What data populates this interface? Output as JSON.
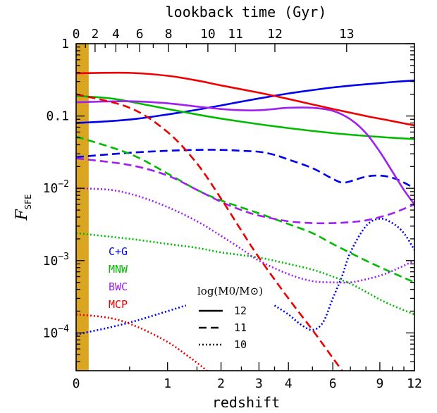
{
  "chart_data": {
    "type": "line",
    "xlabel": "redshift",
    "top_xlabel": "lookback time (Gyr)",
    "ylabel": "F",
    "ylabel_sub": "SFE",
    "x_scale": "log(1+z)",
    "y_scale": "log",
    "xlim": [
      0,
      12
    ],
    "ylim": [
      3e-05,
      1
    ],
    "x_ticks": [
      0,
      1,
      2,
      3,
      4,
      6,
      9,
      12
    ],
    "x_tick_labels": [
      "0",
      "1",
      "2",
      "3",
      "4",
      "6",
      "9",
      "12"
    ],
    "top_ticks": [
      0,
      2,
      4,
      6,
      8,
      10,
      11,
      12,
      13
    ],
    "top_tick_labels": [
      "0",
      "2",
      "4",
      "6",
      "8",
      "10",
      "11",
      "12",
      "13"
    ],
    "y_ticks": [
      1,
      0.1,
      0.01,
      0.001,
      0.0001
    ],
    "y_tick_labels": [
      {
        "base": "1",
        "exp": ""
      },
      {
        "base": "0.1",
        "exp": ""
      },
      {
        "base": "10",
        "exp": "−2"
      },
      {
        "base": "10",
        "exp": "−3"
      },
      {
        "base": "10",
        "exp": "−4"
      }
    ],
    "shaded_band": {
      "x": [
        0,
        0.1
      ],
      "color": "#DAA520"
    },
    "legend_models": [
      {
        "label": "C+G",
        "color": "#0000EE"
      },
      {
        "label": "MNW",
        "color": "#00BB00"
      },
      {
        "label": "BWC",
        "color": "#A020F0"
      },
      {
        "label": "MCP",
        "color": "#EE0000"
      }
    ],
    "legend_mass_title": "log(M0/M⊙)",
    "legend_styles": [
      {
        "label": "12",
        "dash": "solid"
      },
      {
        "label": "11",
        "dash": "dashed"
      },
      {
        "label": "10",
        "dash": "dotted"
      }
    ],
    "series": [
      {
        "model": "C+G",
        "logM": "12",
        "color": "#0000EE",
        "dash": "solid",
        "x": [
          0,
          0.3,
          0.6,
          1,
          1.5,
          2,
          2.5,
          3,
          4,
          5,
          6,
          8,
          10,
          12
        ],
        "y": [
          0.08,
          0.085,
          0.092,
          0.105,
          0.122,
          0.14,
          0.158,
          0.175,
          0.205,
          0.228,
          0.248,
          0.275,
          0.295,
          0.31
        ]
      },
      {
        "model": "C+G",
        "logM": "11",
        "color": "#0000EE",
        "dash": "dashed",
        "x": [
          0,
          0.5,
          1,
          1.5,
          2,
          2.5,
          3,
          3.5,
          4,
          5,
          6,
          6.5,
          7,
          8,
          9,
          10,
          11,
          12
        ],
        "y": [
          0.027,
          0.031,
          0.033,
          0.034,
          0.034,
          0.033,
          0.032,
          0.029,
          0.025,
          0.019,
          0.0135,
          0.012,
          0.0125,
          0.0145,
          0.015,
          0.014,
          0.012,
          0.01
        ]
      },
      {
        "model": "C+G",
        "logM": "10",
        "color": "#0000EE",
        "dash": "dotted",
        "x": [
          0,
          0.3,
          0.6,
          1,
          1.3
        ],
        "y": [
          9.5e-05,
          0.00012,
          0.00015,
          0.0002,
          0.00024
        ]
      },
      {
        "model": "C+G",
        "logM": "10",
        "color": "#0000EE",
        "dash": "dotted",
        "x": [
          3.5,
          4,
          4.5,
          5,
          5.5,
          6,
          6.5,
          7,
          8,
          9,
          10,
          11,
          12
        ],
        "y": [
          0.00024,
          0.00018,
          0.00013,
          0.00011,
          0.00014,
          0.0003,
          0.0006,
          0.0013,
          0.003,
          0.0038,
          0.0033,
          0.0024,
          0.0014
        ]
      },
      {
        "model": "MNW",
        "logM": "12",
        "color": "#00BB00",
        "dash": "solid",
        "x": [
          0,
          0.3,
          0.6,
          1,
          1.5,
          2,
          3,
          4,
          6,
          8,
          10,
          12
        ],
        "y": [
          0.19,
          0.175,
          0.15,
          0.125,
          0.105,
          0.092,
          0.077,
          0.068,
          0.058,
          0.053,
          0.05,
          0.048
        ]
      },
      {
        "model": "MNW",
        "logM": "11",
        "color": "#00BB00",
        "dash": "dashed",
        "x": [
          0,
          0.5,
          1,
          1.5,
          2,
          3,
          4,
          5,
          6,
          8,
          10,
          12
        ],
        "y": [
          0.052,
          0.03,
          0.016,
          0.0095,
          0.0068,
          0.0045,
          0.0032,
          0.0024,
          0.0017,
          0.001,
          0.00068,
          0.0005
        ]
      },
      {
        "model": "MNW",
        "logM": "10",
        "color": "#00BB00",
        "dash": "dotted",
        "x": [
          0,
          0.5,
          1,
          1.5,
          2,
          3,
          4,
          5,
          6,
          7,
          8,
          9,
          10,
          12
        ],
        "y": [
          0.0024,
          0.002,
          0.0017,
          0.0015,
          0.0013,
          0.0011,
          0.0009,
          0.00075,
          0.0006,
          0.00048,
          0.00037,
          0.00029,
          0.00024,
          0.00018
        ]
      },
      {
        "model": "BWC",
        "logM": "12",
        "color": "#A020F0",
        "dash": "solid",
        "x": [
          0,
          0.5,
          1,
          1.5,
          2,
          2.5,
          3,
          3.5,
          4,
          5,
          6,
          7,
          8,
          9,
          10,
          11,
          12
        ],
        "y": [
          0.155,
          0.16,
          0.15,
          0.135,
          0.125,
          0.12,
          0.12,
          0.125,
          0.13,
          0.13,
          0.118,
          0.09,
          0.058,
          0.032,
          0.017,
          0.0095,
          0.006
        ]
      },
      {
        "model": "BWC",
        "logM": "11",
        "color": "#A020F0",
        "dash": "dashed",
        "x": [
          0,
          0.5,
          1,
          1.5,
          2,
          2.5,
          3,
          4,
          5,
          6,
          7,
          8,
          9,
          10,
          11,
          12
        ],
        "y": [
          0.026,
          0.021,
          0.015,
          0.0095,
          0.0065,
          0.005,
          0.0042,
          0.0035,
          0.0033,
          0.0033,
          0.0034,
          0.0036,
          0.004,
          0.0045,
          0.0052,
          0.006
        ]
      },
      {
        "model": "BWC",
        "logM": "10",
        "color": "#A020F0",
        "dash": "dotted",
        "x": [
          0,
          0.3,
          0.6,
          1,
          1.5,
          2,
          2.5,
          3,
          4,
          5,
          6,
          7,
          8,
          9,
          10,
          12
        ],
        "y": [
          0.01,
          0.0095,
          0.0078,
          0.0055,
          0.0035,
          0.0022,
          0.00145,
          0.001,
          0.00065,
          0.00052,
          0.0005,
          0.0005,
          0.00055,
          0.00062,
          0.00072,
          0.001
        ]
      },
      {
        "model": "MCP",
        "logM": "12",
        "color": "#EE0000",
        "dash": "solid",
        "x": [
          0,
          0.5,
          1,
          1.5,
          2,
          3,
          4,
          6,
          8,
          10,
          12
        ],
        "y": [
          0.39,
          0.395,
          0.36,
          0.31,
          0.265,
          0.21,
          0.172,
          0.125,
          0.1,
          0.085,
          0.074
        ]
      },
      {
        "model": "MCP",
        "logM": "11",
        "color": "#EE0000",
        "dash": "dashed",
        "x": [
          0,
          0.5,
          1,
          1.5,
          2,
          2.5,
          3,
          4,
          5,
          6,
          7
        ],
        "y": [
          0.2,
          0.13,
          0.06,
          0.022,
          0.0072,
          0.0026,
          0.0011,
          0.0003,
          0.00011,
          4.5e-05,
          2.1e-05
        ]
      },
      {
        "model": "MCP",
        "logM": "10",
        "color": "#EE0000",
        "dash": "dotted",
        "x": [
          0,
          0.3,
          0.6,
          1,
          1.3,
          1.6,
          1.8
        ],
        "y": [
          0.00018,
          0.00016,
          0.00012,
          7.5e-05,
          5e-05,
          3.4e-05,
          2.6e-05
        ]
      }
    ]
  }
}
